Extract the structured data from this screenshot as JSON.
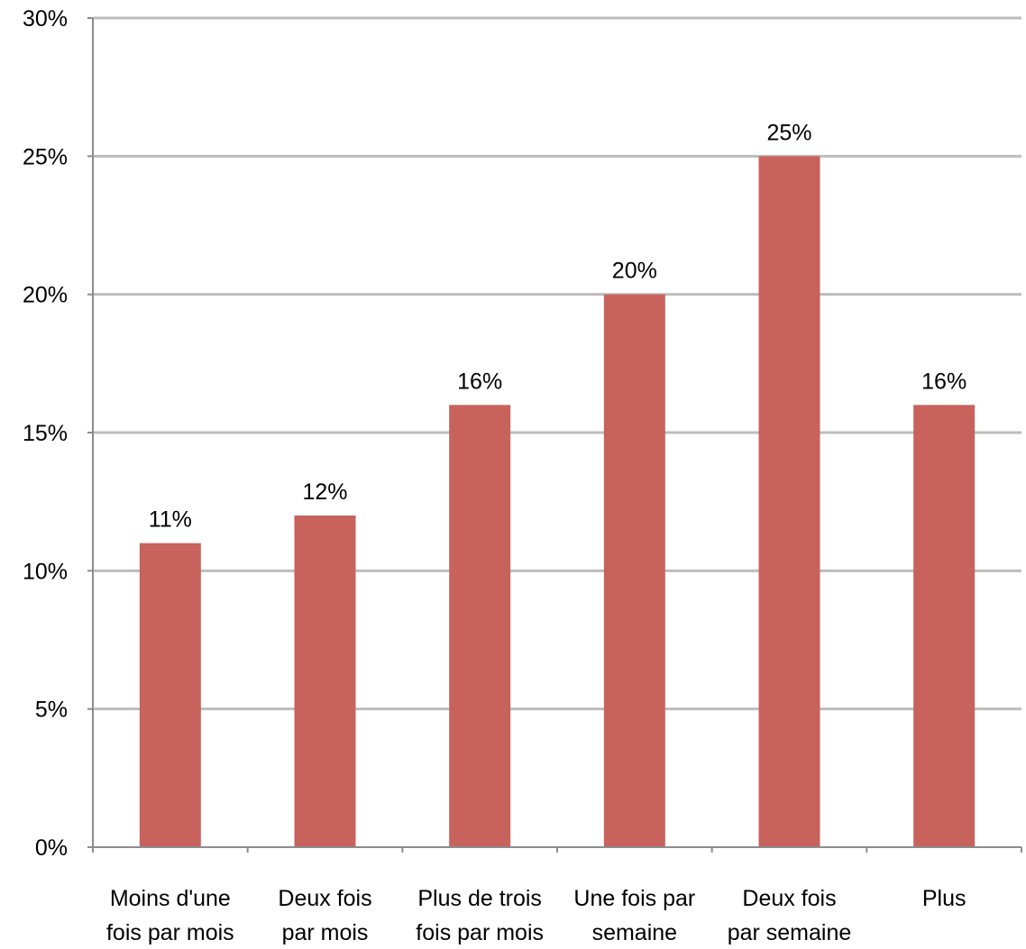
{
  "chart_data": {
    "type": "bar",
    "title": "",
    "xlabel": "",
    "ylabel": "",
    "categories": [
      [
        "Moins d'une",
        "fois par mois"
      ],
      [
        "Deux fois",
        "par mois"
      ],
      [
        "Plus de trois",
        "fois par mois"
      ],
      [
        "Une fois par",
        "semaine"
      ],
      [
        "Deux fois",
        "par semaine"
      ],
      [
        "Plus"
      ]
    ],
    "values": [
      11,
      12,
      16,
      20,
      25,
      16
    ],
    "data_labels": [
      "11%",
      "12%",
      "16%",
      "20%",
      "25%",
      "16%"
    ],
    "ylim": [
      0,
      30
    ],
    "yticks": [
      0,
      5,
      10,
      15,
      20,
      25,
      30
    ],
    "ytick_labels": [
      "0%",
      "5%",
      "10%",
      "15%",
      "20%",
      "25%",
      "30%"
    ],
    "grid": true,
    "legend": "none",
    "colors": {
      "bar": "#c8625c",
      "grid": "#bdbdbd",
      "axis": "#8c8c8c"
    }
  }
}
